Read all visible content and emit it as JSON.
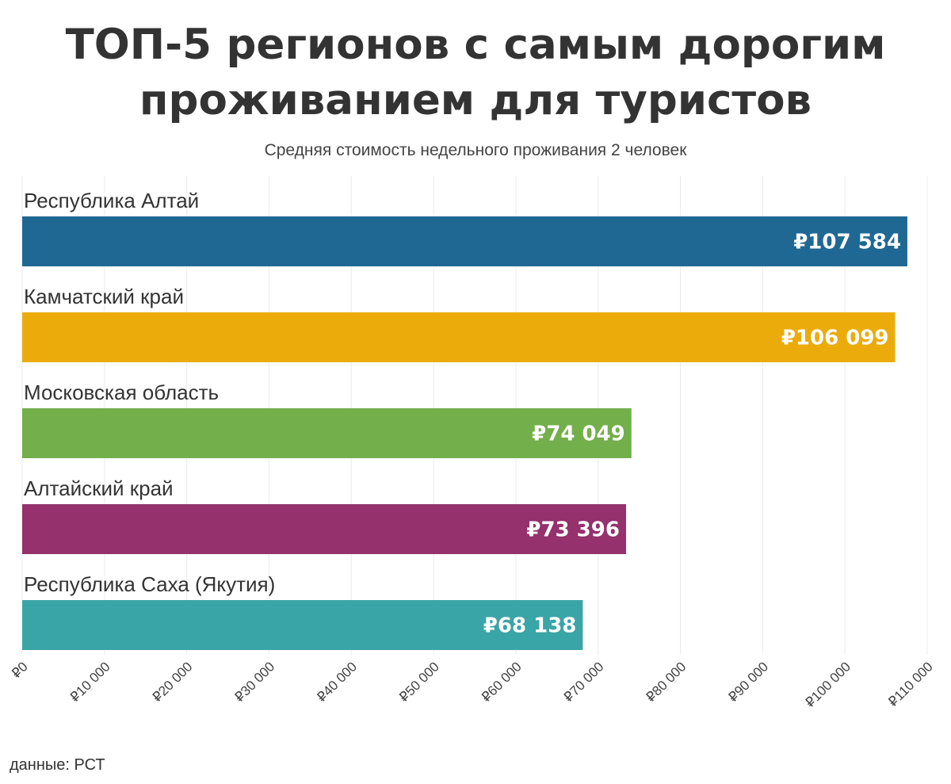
{
  "header": {
    "title_line1": "ТОП-5 регионов с самым дорогим",
    "title_line2": "проживанием для туристов",
    "subtitle": "Средняя стоимость недельного проживания 2 человек"
  },
  "source": "данные: РСТ",
  "chart_data": {
    "type": "bar",
    "orientation": "horizontal",
    "title": "ТОП-5 регионов с самым дорогим проживанием для туристов",
    "subtitle": "Средняя стоимость недельного проживания 2 человек",
    "categories": [
      "Республика Алтай",
      "Камчатский край",
      "Московская область",
      "Алтайский край",
      "Республика Саха (Якутия)"
    ],
    "values": [
      107584,
      106099,
      74049,
      73396,
      68138
    ],
    "value_labels": [
      "₽107 584",
      "₽106 099",
      "₽74 049",
      "₽73 396",
      "₽68 138"
    ],
    "colors": [
      "#1f6894",
      "#ebac0b",
      "#73af4a",
      "#95316c",
      "#3aa5a6"
    ],
    "xlim": [
      0,
      110000
    ],
    "x_ticks": [
      0,
      10000,
      20000,
      30000,
      40000,
      50000,
      60000,
      70000,
      80000,
      90000,
      100000,
      110000
    ],
    "x_tick_labels": [
      "₽0",
      "₽10 000",
      "₽20 000",
      "₽30 000",
      "₽40 000",
      "₽50 000",
      "₽60 000",
      "₽70 000",
      "₽80 000",
      "₽90 000",
      "₽100 000",
      "₽110 000"
    ],
    "grid": true,
    "xlabel": "",
    "ylabel": ""
  }
}
